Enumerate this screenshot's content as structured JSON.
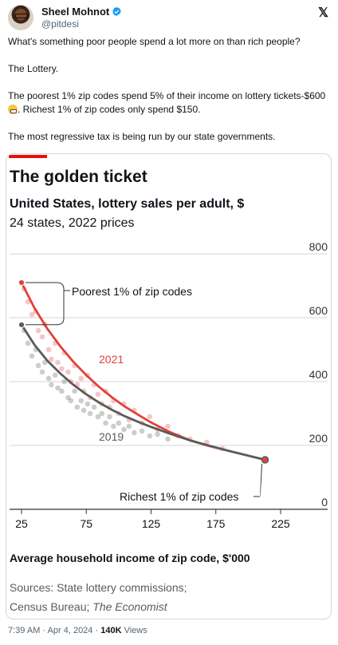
{
  "author": {
    "name": "Sheel Mohnot",
    "handle": "@pitdesi"
  },
  "icons": {
    "avatar": "avatar",
    "verified": "verified-badge-icon",
    "platform": "x-logo-icon",
    "emoji": "grimacing-face-emoji"
  },
  "tweet": {
    "line1": "What's something poor people spend a lot more on than rich people?",
    "line2": "The Lottery.",
    "line3a": "The poorest 1% zip codes spend 5% of their income on lottery tickets-$600",
    "line3b": ". Richest 1% of zip codes only spend $150.",
    "line4": "The most regressive tax is being run by our state governments."
  },
  "footer": {
    "time": "7:39 AM",
    "sep1": "·",
    "date": "Apr 4, 2024",
    "sep2": "·",
    "views_count": "140K",
    "views_label": "Views"
  },
  "chart_data": {
    "type": "scatter",
    "title": "The golden ticket",
    "subtitle": "United States, lottery sales per adult, $",
    "subtitle2": "24 states, 2022 prices",
    "xlabel": "Average household income of zip code, $'000",
    "ylabel": "",
    "xlim": [
      20,
      230
    ],
    "ylim": [
      0,
      800
    ],
    "x_ticks": [
      25,
      75,
      125,
      175,
      225
    ],
    "y_ticks": [
      0,
      200,
      400,
      600,
      800
    ],
    "y_axis_side": "right",
    "grid": true,
    "accent_color": "#e3120b",
    "colors": {
      "2021": "#e0423a",
      "2019": "#5b5b5b"
    },
    "series": [
      {
        "name": "2021",
        "type": "line",
        "x": [
          25,
          35,
          45,
          55,
          65,
          75,
          85,
          95,
          105,
          115,
          125,
          140,
          155,
          170,
          185,
          200,
          213
        ],
        "y": [
          710,
          630,
          565,
          510,
          462,
          420,
          383,
          350,
          321,
          296,
          272,
          241,
          216,
          198,
          183,
          168,
          155
        ]
      },
      {
        "name": "2019",
        "type": "line",
        "x": [
          25,
          35,
          45,
          55,
          65,
          75,
          85,
          95,
          105,
          115,
          125,
          140,
          155,
          170,
          185,
          200,
          213
        ],
        "y": [
          578,
          515,
          465,
          425,
          390,
          360,
          334,
          311,
          291,
          274,
          258,
          236,
          216,
          199,
          183,
          168,
          155
        ]
      },
      {
        "name": "2021",
        "type": "scatter",
        "x": [
          27,
          30,
          33,
          36,
          38,
          41,
          43,
          46,
          48,
          51,
          53,
          56,
          58,
          61,
          63,
          66,
          68,
          71,
          73,
          76,
          78,
          81,
          84,
          87,
          90,
          93,
          96,
          100,
          104,
          108,
          112,
          118,
          124,
          130,
          138,
          146,
          155,
          168,
          180
        ],
        "y": [
          690,
          650,
          610,
          620,
          560,
          540,
          580,
          500,
          470,
          520,
          460,
          440,
          490,
          430,
          400,
          450,
          390,
          410,
          370,
          420,
          350,
          390,
          360,
          330,
          370,
          320,
          340,
          300,
          330,
          280,
          310,
          270,
          290,
          250,
          260,
          230,
          220,
          210,
          190
        ]
      },
      {
        "name": "2019",
        "type": "scatter",
        "x": [
          27,
          30,
          33,
          36,
          38,
          41,
          43,
          46,
          48,
          51,
          53,
          56,
          58,
          61,
          63,
          66,
          68,
          71,
          73,
          76,
          78,
          81,
          84,
          87,
          90,
          93,
          96,
          100,
          104,
          108,
          112,
          118,
          124,
          130,
          138
        ],
        "y": [
          560,
          520,
          480,
          500,
          450,
          430,
          460,
          410,
          390,
          420,
          380,
          370,
          400,
          350,
          340,
          370,
          320,
          340,
          310,
          330,
          300,
          320,
          290,
          300,
          270,
          290,
          260,
          270,
          250,
          260,
          240,
          245,
          230,
          235,
          220
        ]
      }
    ],
    "annotations": [
      {
        "text": "Poorest 1% of zip codes"
      },
      {
        "text": "Richest 1% of zip codes"
      },
      {
        "text": "2021"
      },
      {
        "text": "2019"
      }
    ],
    "sources_line1": "Sources: State lottery commissions;",
    "sources_line2a": "Census Bureau; ",
    "sources_line2b": "The Economist"
  }
}
